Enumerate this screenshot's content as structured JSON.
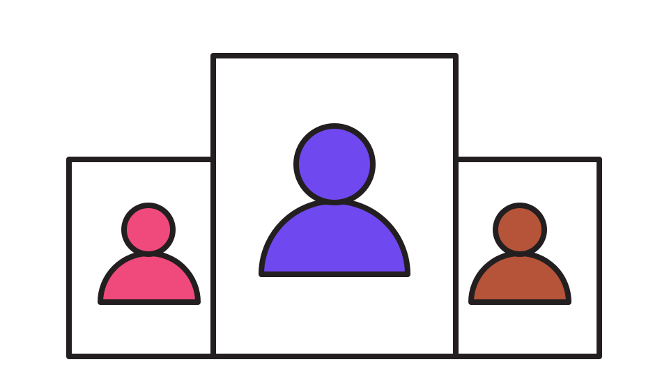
{
  "illustration": {
    "subject": "podium-with-three-users",
    "stroke_color": "#231f20",
    "background_color": "#ffffff",
    "podiums": [
      {
        "position": "left",
        "rank": 2,
        "icon": "user-icon",
        "color": "#f04a7c"
      },
      {
        "position": "center",
        "rank": 1,
        "icon": "user-icon",
        "color": "#7048f0"
      },
      {
        "position": "right",
        "rank": 3,
        "icon": "user-icon",
        "color": "#b55438"
      }
    ]
  }
}
